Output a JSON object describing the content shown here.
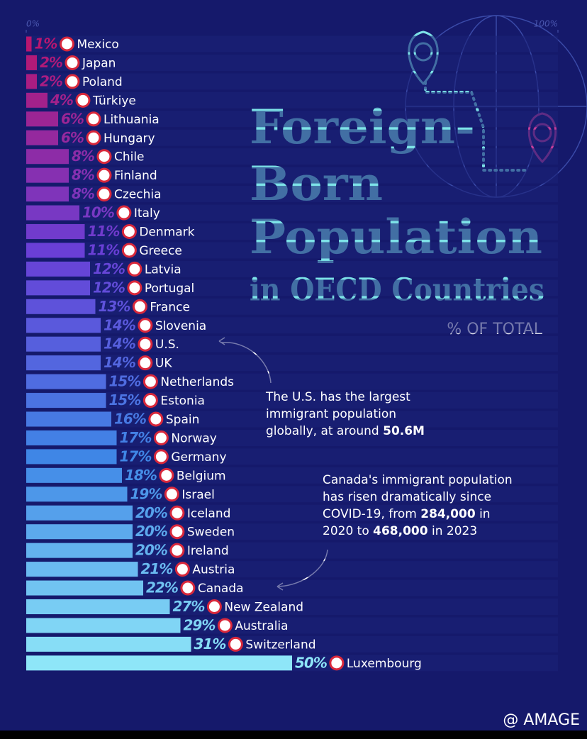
{
  "chart_data": {
    "type": "bar",
    "orientation": "horizontal",
    "title": [
      "Foreign-",
      "Born",
      "Population",
      "in OECD Countries"
    ],
    "subtitle": "% OF TOTAL",
    "categories": [
      "Mexico",
      "Japan",
      "Poland",
      "Türkiye",
      "Lithuania",
      "Hungary",
      "Chile",
      "Finland",
      "Czechia",
      "Italy",
      "Denmark",
      "Greece",
      "Latvia",
      "Portugal",
      "France",
      "Slovenia",
      "U.S.",
      "UK",
      "Netherlands",
      "Estonia",
      "Spain",
      "Norway",
      "Germany",
      "Belgium",
      "Israel",
      "Iceland",
      "Sweden",
      "Ireland",
      "Austria",
      "Canada",
      "New Zealand",
      "Australia",
      "Switzerland",
      "Luxembourg"
    ],
    "values": [
      1,
      2,
      2,
      4,
      6,
      6,
      8,
      8,
      8,
      10,
      11,
      11,
      12,
      12,
      13,
      14,
      14,
      14,
      15,
      15,
      16,
      17,
      17,
      18,
      19,
      20,
      20,
      20,
      21,
      22,
      27,
      29,
      31,
      50
    ],
    "value_labels": [
      "1%",
      "2%",
      "2%",
      "4%",
      "6%",
      "6%",
      "8%",
      "8%",
      "8%",
      "10%",
      "11%",
      "11%",
      "12%",
      "12%",
      "13%",
      "14%",
      "14%",
      "14%",
      "15%",
      "15%",
      "16%",
      "17%",
      "17%",
      "18%",
      "19%",
      "20%",
      "20%",
      "20%",
      "21%",
      "22%",
      "27%",
      "29%",
      "31%",
      "50%"
    ],
    "colors": [
      "#b8166f",
      "#6a3fd6",
      "#3f86e6",
      "#8ee6f8"
    ],
    "xlim": [
      0,
      100
    ],
    "xticks": [
      {
        "value": 0,
        "label": "0%"
      },
      {
        "value": 100,
        "label": "100%"
      }
    ],
    "annotations": [
      {
        "lines": [
          [
            {
              "text": "The U.S. has the largest",
              "bold": false
            }
          ],
          [
            {
              "text": "immigrant population",
              "bold": false
            }
          ],
          [
            {
              "text": "globally, at around ",
              "bold": false
            },
            {
              "text": "50.6M",
              "bold": true
            }
          ]
        ]
      },
      {
        "lines": [
          [
            {
              "text": "Canada's immigrant population",
              "bold": false
            }
          ],
          [
            {
              "text": "has risen dramatically since",
              "bold": false
            }
          ],
          [
            {
              "text": "COVID-19, from ",
              "bold": false
            },
            {
              "text": "284,000",
              "bold": true
            },
            {
              "text": " in",
              "bold": false
            }
          ],
          [
            {
              "text": "2020 to ",
              "bold": false
            },
            {
              "text": "468,000",
              "bold": true
            },
            {
              "text": " in 2023",
              "bold": false
            }
          ]
        ]
      }
    ],
    "watermark": "@ AMAGE"
  }
}
